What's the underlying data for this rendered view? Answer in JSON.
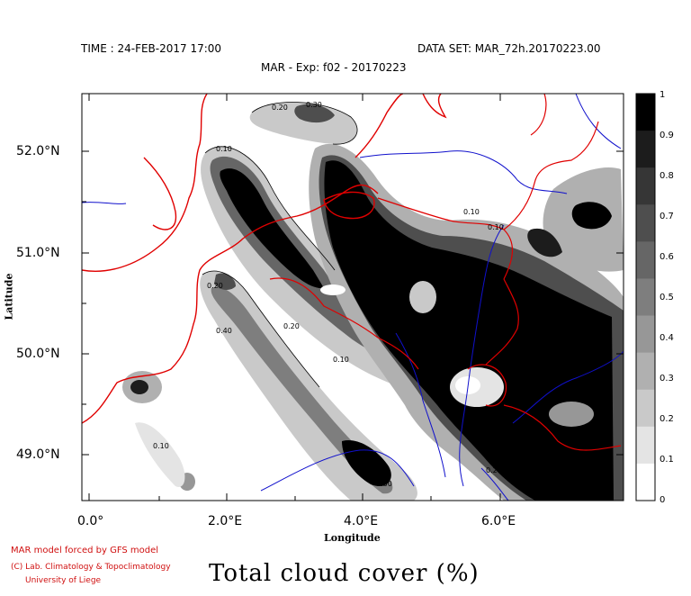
{
  "header": {
    "time_label": "TIME : 24-FEB-2017 17:00",
    "dataset_label": "DATA SET: MAR_72h.20170223.00",
    "experiment_label": "MAR - Exp: f02 - 20170223"
  },
  "axes": {
    "xlabel": "Longitude",
    "ylabel": "Latitude",
    "x_ticks": [
      "0.0°",
      "2.0°E",
      "4.0°E",
      "6.0°E"
    ],
    "y_ticks": [
      "52.0°N",
      "51.0°N",
      "50.0°N",
      "49.0°N"
    ]
  },
  "colorbar": {
    "labels": [
      "1",
      "0.9",
      "0.8",
      "0.7",
      "0.6",
      "0.5",
      "0.4",
      "0.3",
      "0.2",
      "0.1",
      "0"
    ],
    "colors": [
      "#000000",
      "#1c1c1c",
      "#363636",
      "#4e4e4e",
      "#666666",
      "#7e7e7e",
      "#979797",
      "#b0b0b0",
      "#c9c9c9",
      "#e4e4e4",
      "#ffffff"
    ]
  },
  "contour_labels": [
    "0.20",
    "0.30",
    "0.10",
    "0.10",
    "0.10",
    "0.20",
    "0.10",
    "0.10",
    "0.40",
    "0.10",
    "0.10",
    "0.20",
    "0.30",
    "0.20"
  ],
  "colors": {
    "borders": "#e00000",
    "rivers": "#1010cc",
    "credits": "#d01010"
  },
  "credits": {
    "line1": "MAR model forced by GFS model",
    "line2": "(C) Lab. Climatology & Topoclimatology",
    "line3": "University of Liege"
  },
  "title": "Total cloud cover (%)"
}
